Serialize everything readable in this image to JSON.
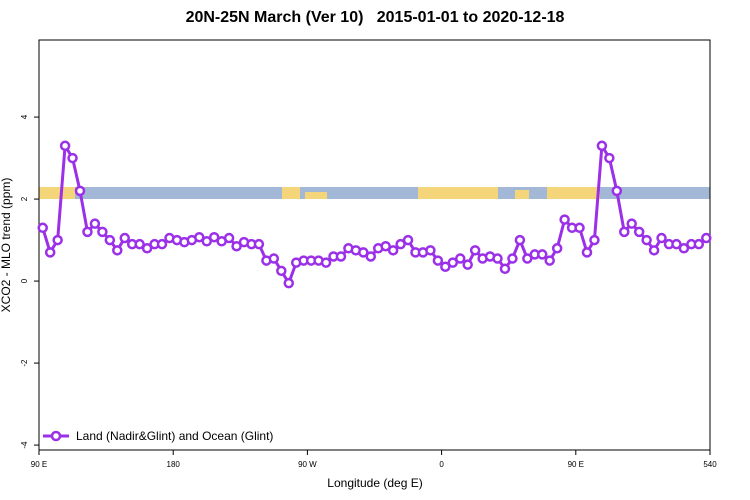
{
  "chart_data": {
    "type": "line",
    "title": "20N-25N March (Ver 10)   2015-01-01 to 2020-12-18",
    "x_label": "Longitude (deg E)",
    "y_label": "XCO2 - MLO trend (ppm)",
    "xlim": [
      90,
      540
    ],
    "ylim": [
      -4.12,
      5.88
    ],
    "xticks": [
      {
        "value": 90,
        "label": "90 E"
      },
      180,
      {
        "value": 270,
        "label": "90 W"
      },
      {
        "value": 360,
        "label": "0"
      },
      {
        "value": 450,
        "label": "90 E"
      },
      540
    ],
    "yticks": [
      -4,
      -2,
      0,
      2,
      4
    ],
    "legend": "bottom-left",
    "x": [
      92.5,
      97.5,
      102.5,
      107.5,
      112.5,
      117.5,
      122.5,
      127.5,
      132.5,
      137.5,
      142.5,
      147.5,
      152.5,
      157.5,
      162.5,
      167.5,
      172.5,
      177.5,
      182.5,
      187.5,
      192.5,
      197.5,
      202.5,
      207.5,
      212.5,
      217.5,
      222.5,
      227.5,
      232.5,
      237.5,
      242.5,
      247.5,
      252.5,
      257.5,
      262.5,
      267.5,
      272.5,
      277.5,
      282.5,
      287.5,
      292.5,
      297.5,
      302.5,
      307.5,
      312.5,
      317.5,
      322.5,
      327.5,
      332.5,
      337.5,
      342.5,
      347.5,
      352.5,
      357.5,
      362.5,
      367.5,
      372.5,
      377.5,
      382.5,
      387.5,
      392.5,
      397.5,
      402.5,
      407.5,
      412.5,
      417.5,
      422.5,
      427.5,
      432.5,
      437.5,
      442.5,
      447.5,
      452.5,
      457.5,
      462.5,
      467.5,
      472.5,
      477.5,
      482.5,
      487.5,
      492.5,
      497.5,
      502.5,
      507.5,
      512.5,
      517.5,
      522.5,
      527.5,
      532.5,
      537.5
    ],
    "series": [
      {
        "name": "Land (Nadir&Glint) and Ocean (Glint)",
        "color": "#9b30e8",
        "values": [
          1.3,
          0.7,
          1.0,
          3.3,
          3.0,
          2.2,
          1.2,
          1.4,
          1.2,
          1.0,
          0.75,
          1.05,
          0.9,
          0.9,
          0.8,
          0.9,
          0.9,
          1.05,
          1.0,
          0.95,
          1.0,
          1.07,
          0.97,
          1.07,
          0.97,
          1.05,
          0.85,
          0.95,
          0.9,
          0.9,
          0.5,
          0.55,
          0.25,
          -0.05,
          0.45,
          0.5,
          0.5,
          0.5,
          0.45,
          0.6,
          0.6,
          0.8,
          0.75,
          0.7,
          0.6,
          0.8,
          0.85,
          0.75,
          0.9,
          1.0,
          0.7,
          0.7,
          0.75,
          0.5,
          0.35,
          0.45,
          0.55,
          0.4,
          0.75,
          0.55,
          0.6,
          0.55,
          0.3,
          0.55,
          1.0,
          0.55,
          0.65,
          0.65,
          0.5,
          0.8,
          1.5,
          1.3,
          1.3,
          0.7,
          1.0,
          3.3,
          3.0,
          2.2,
          1.2,
          1.4,
          1.2,
          1.0,
          0.75,
          1.05,
          0.9,
          0.9,
          0.8,
          0.9,
          0.9,
          1.05
        ]
      }
    ]
  }
}
